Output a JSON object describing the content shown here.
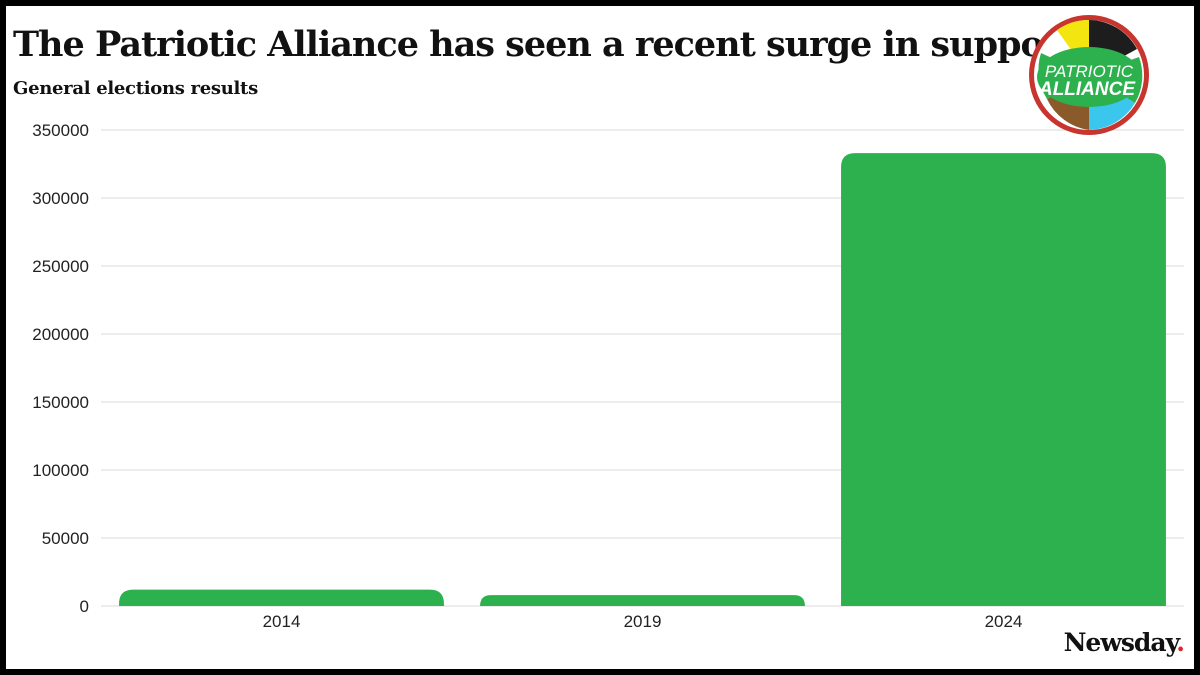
{
  "header": {
    "title": "The Patriotic Alliance has seen a recent surge in support",
    "subtitle": "General elections results"
  },
  "logo": {
    "line1": "PATRIOTIC",
    "line2": "ALLIANCE"
  },
  "brand": {
    "name": "Newsday",
    "dot": "."
  },
  "colors": {
    "bar": "#2db14e",
    "grid": "#d9d9d9",
    "logo_ring": "#c8342e",
    "logo_green": "#2db14e"
  },
  "chart_data": {
    "type": "bar",
    "categories": [
      "2014",
      "2019",
      "2024"
    ],
    "values": [
      12000,
      8000,
      333000
    ],
    "title": "The Patriotic Alliance has seen a recent surge in support",
    "subtitle": "General elections results",
    "xlabel": "",
    "ylabel": "",
    "ylim": [
      0,
      350000
    ],
    "yticks": [
      0,
      50000,
      100000,
      150000,
      200000,
      250000,
      300000,
      350000
    ],
    "ytick_labels": [
      "0",
      "50000",
      "100000",
      "150000",
      "200000",
      "250000",
      "300000",
      "350000"
    ],
    "grid": true,
    "legend": "none"
  }
}
